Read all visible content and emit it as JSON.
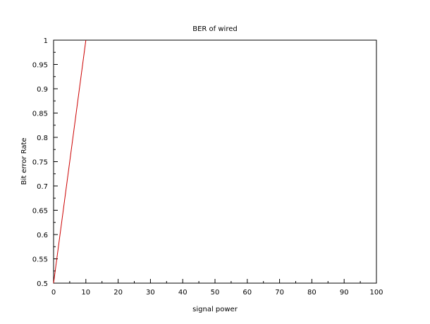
{
  "chart_data": {
    "type": "line",
    "title": "BER of wired",
    "xlabel": "signal power",
    "ylabel": "Bit error  Rate",
    "xlim": [
      0,
      100
    ],
    "ylim": [
      0.5,
      1
    ],
    "x_ticks": [
      "0",
      "10",
      "20",
      "30",
      "40",
      "50",
      "60",
      "70",
      "80",
      "90",
      "100"
    ],
    "y_ticks": [
      "0.5",
      "0.55",
      "0.6",
      "0.65",
      "0.7",
      "0.75",
      "0.8",
      "0.85",
      "0.9",
      "0.95",
      "1"
    ],
    "grid": false,
    "series": [
      {
        "color": "#cc0000",
        "x": [
          0,
          10
        ],
        "y": [
          0.5,
          1
        ]
      }
    ]
  }
}
